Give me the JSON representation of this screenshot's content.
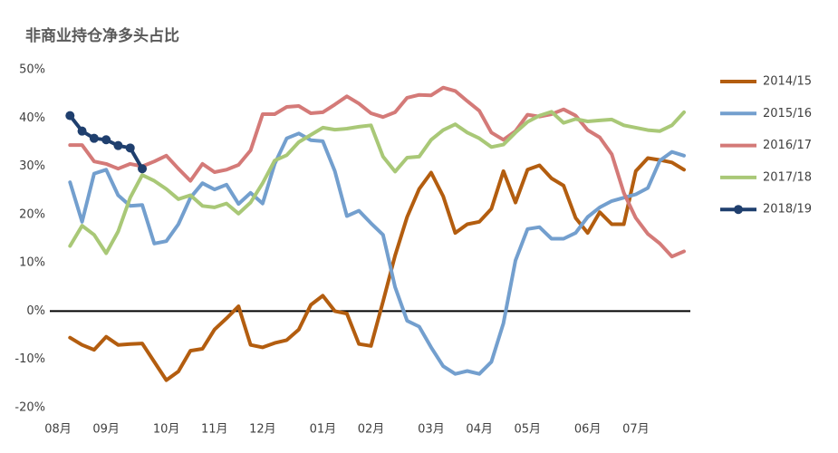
{
  "chart_data": {
    "type": "line",
    "title": "非商业持仓净多头占比",
    "categories": [
      "08月",
      null,
      null,
      null,
      "09月",
      null,
      null,
      null,
      null,
      "10月",
      null,
      null,
      null,
      "11月",
      null,
      null,
      null,
      "12月",
      null,
      null,
      null,
      null,
      "01月",
      null,
      null,
      null,
      "02月",
      null,
      null,
      null,
      null,
      "03月",
      null,
      null,
      null,
      "04月",
      null,
      null,
      null,
      "05月",
      null,
      null,
      null,
      null,
      "06月",
      null,
      null,
      null,
      "07月",
      null,
      null,
      null,
      null
    ],
    "series": [
      {
        "name": "2014/15",
        "color": "#b35d0f",
        "markers": false,
        "values": [
          null,
          -5.5,
          -7,
          -8,
          -5.3,
          -7,
          -6.8,
          -6.7,
          -10.5,
          -14.3,
          -12.5,
          -8.2,
          -7.8,
          -3.8,
          -1.5,
          1,
          -7,
          -7.5,
          -6.6,
          -6,
          -3.8,
          1.3,
          3.2,
          0,
          -0.5,
          -6.8,
          -7.2,
          2,
          11.5,
          19.5,
          25.3,
          28.7,
          23.8,
          16.2,
          18,
          18.5,
          21.2,
          29,
          22.5,
          29.3,
          30.2,
          27.5,
          26,
          19.3,
          16.2,
          20.5,
          18,
          18,
          29,
          31.7,
          31.3,
          30.8,
          29.3
        ]
      },
      {
        "name": "2015/16",
        "color": "#739fce",
        "markers": false,
        "values": [
          null,
          26.7,
          18.5,
          28.5,
          29.3,
          24,
          21.8,
          22,
          14,
          14.5,
          18,
          23.5,
          26.5,
          25.2,
          26.2,
          22.2,
          24.5,
          22.3,
          30.5,
          35.8,
          36.8,
          35.4,
          35.2,
          29,
          19.7,
          20.8,
          18.2,
          15.8,
          5,
          -2,
          -3.2,
          -7.5,
          -11.4,
          -13,
          -12.4,
          -13,
          -10.5,
          -2.5,
          10.5,
          17,
          17.4,
          15,
          15,
          16.2,
          19.5,
          21.5,
          22.8,
          23.5,
          24.2,
          25.5,
          31.2,
          33,
          32.2
        ]
      },
      {
        "name": "2016/17",
        "color": "#d47a78",
        "markers": false,
        "values": [
          null,
          34.4,
          34.4,
          31,
          30.5,
          29.5,
          30.5,
          30,
          31,
          32.2,
          29.5,
          27,
          30.5,
          28.8,
          29.3,
          30.3,
          33.3,
          40.8,
          40.8,
          42.3,
          42.5,
          41,
          41.2,
          42.8,
          44.5,
          43,
          41,
          40.2,
          41.2,
          44.2,
          44.8,
          44.7,
          46.3,
          45.6,
          43.5,
          41.5,
          37,
          35.5,
          37.3,
          40.7,
          40.3,
          40.8,
          41.8,
          40.5,
          37.5,
          36,
          32.5,
          24.5,
          19.3,
          16,
          14,
          11.3,
          12.4
        ]
      },
      {
        "name": "2017/18",
        "color": "#a9c877",
        "markers": false,
        "values": [
          null,
          13.5,
          17.7,
          15.8,
          12,
          16.5,
          23.5,
          28.2,
          27,
          25.3,
          23.2,
          24,
          21.8,
          21.5,
          22.3,
          20.2,
          22.5,
          26.5,
          31.2,
          32.3,
          35,
          36.5,
          38,
          37.6,
          37.8,
          38.2,
          38.5,
          32,
          28.9,
          31.8,
          32,
          35.5,
          37.5,
          38.7,
          37,
          35.8,
          34,
          34.5,
          37,
          39.2,
          40.5,
          41.3,
          39,
          39.8,
          39.3,
          39.5,
          39.7,
          38.5,
          38,
          37.5,
          37.3,
          38.5,
          41.2
        ]
      },
      {
        "name": "2018/19",
        "color": "#1f3f6e",
        "markers": true,
        "values": [
          null,
          40.5,
          37.3,
          35.8,
          35.5,
          34.3,
          33.8,
          29.5,
          null,
          null,
          null,
          null,
          null,
          null,
          null,
          null,
          null,
          null,
          null,
          null,
          null,
          null,
          null,
          null,
          null,
          null,
          null,
          null,
          null,
          null,
          null,
          null,
          null,
          null,
          null,
          null,
          null,
          null,
          null,
          null,
          null,
          null,
          null,
          null,
          null,
          null,
          null,
          null,
          null,
          null,
          null,
          null,
          null
        ]
      }
    ],
    "ylim": [
      -20,
      50
    ],
    "yticks": [
      {
        "value": -20,
        "label": "-20%"
      },
      {
        "value": -10,
        "label": "-10%"
      },
      {
        "value": 0,
        "label": "0%"
      },
      {
        "value": 10,
        "label": "10%"
      },
      {
        "value": 20,
        "label": "20%"
      },
      {
        "value": 30,
        "label": "30%"
      },
      {
        "value": 40,
        "label": "40%"
      },
      {
        "value": 50,
        "label": "50%"
      }
    ],
    "grid": false,
    "legend": "right"
  }
}
